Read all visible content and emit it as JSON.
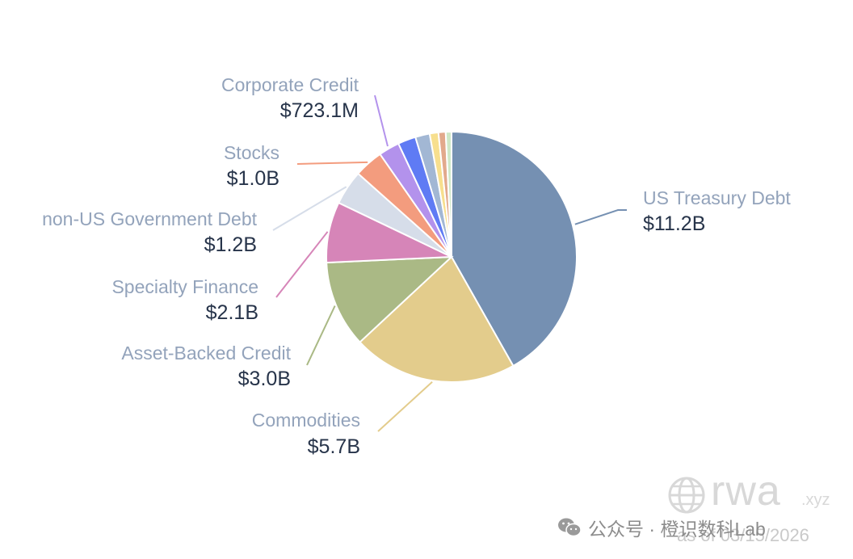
{
  "chart_data": {
    "type": "pie",
    "title": "",
    "slices": [
      {
        "name": "US Treasury Debt",
        "value": 11.2,
        "label": "$11.2B",
        "color": "#7590b2",
        "labeled": true
      },
      {
        "name": "Commodities",
        "value": 5.7,
        "label": "$5.7B",
        "color": "#e3cc8c",
        "labeled": true
      },
      {
        "name": "Asset-Backed Credit",
        "value": 3.0,
        "label": "$3.0B",
        "color": "#aab985",
        "labeled": true
      },
      {
        "name": "Specialty Finance",
        "value": 2.1,
        "label": "$2.1B",
        "color": "#d685b8",
        "labeled": true
      },
      {
        "name": "non-US Government Debt",
        "value": 1.2,
        "label": "$1.2B",
        "color": "#d6dde9",
        "labeled": true
      },
      {
        "name": "Stocks",
        "value": 1.0,
        "label": "$1.0B",
        "color": "#f39c7e",
        "labeled": true
      },
      {
        "name": "Corporate Credit",
        "value": 0.7231,
        "label": "$723.1M",
        "color": "#b392ec",
        "labeled": true
      },
      {
        "name": "",
        "value": 0.62,
        "label": "",
        "color": "#5f7bf4",
        "labeled": false
      },
      {
        "name": "",
        "value": 0.5,
        "label": "",
        "color": "#a2b7d4",
        "labeled": false
      },
      {
        "name": "",
        "value": 0.3,
        "label": "",
        "color": "#f7df8e",
        "labeled": false
      },
      {
        "name": "",
        "value": 0.25,
        "label": "",
        "color": "#e2a98c",
        "labeled": false
      },
      {
        "name": "",
        "value": 0.2,
        "label": "",
        "color": "#cfe8c7",
        "labeled": false
      }
    ]
  },
  "watermark": {
    "brand": "rwa",
    "domain": ".xyz",
    "date": "as of 03/15/2026",
    "account": "公众号 · 橙识数科Lab"
  }
}
